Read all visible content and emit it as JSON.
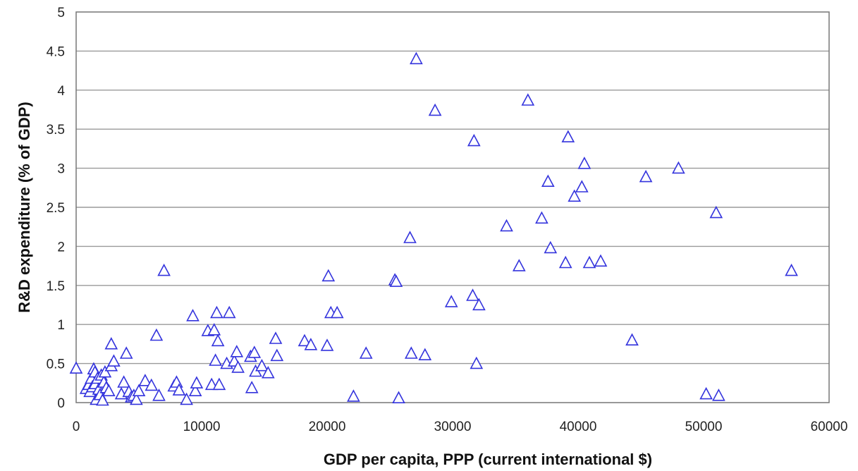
{
  "chart_data": {
    "type": "scatter",
    "title": "",
    "xlabel": "GDP per capita, PPP (current international $)",
    "ylabel": "R&D expenditure (% of GDP)",
    "xlim": [
      0,
      60000
    ],
    "ylim": [
      0,
      5
    ],
    "xticks": [
      0,
      10000,
      20000,
      30000,
      40000,
      50000,
      60000
    ],
    "yticks": [
      0,
      0.5,
      1,
      1.5,
      2,
      2.5,
      3,
      3.5,
      4,
      4.5,
      5
    ],
    "xtick_labels": [
      "0",
      "10000",
      "20000",
      "30000",
      "40000",
      "50000",
      "60000"
    ],
    "ytick_labels": [
      "0",
      "0.5",
      "1",
      "1.5",
      "2",
      "2.5",
      "3",
      "3.5",
      "4",
      "4.5",
      "5"
    ],
    "grid": "horizontal",
    "legend": "none",
    "marker": "open-triangle",
    "marker_color": "#3333dd",
    "points": [
      {
        "x": 0,
        "y": 0.43
      },
      {
        "x": 800,
        "y": 0.17
      },
      {
        "x": 1000,
        "y": 0.22
      },
      {
        "x": 1100,
        "y": 0.13
      },
      {
        "x": 1200,
        "y": 0.3
      },
      {
        "x": 1300,
        "y": 0.19
      },
      {
        "x": 1400,
        "y": 0.42
      },
      {
        "x": 1500,
        "y": 0.38
      },
      {
        "x": 1500,
        "y": 0.23
      },
      {
        "x": 1600,
        "y": 0.03
      },
      {
        "x": 1700,
        "y": 0.3
      },
      {
        "x": 1800,
        "y": 0.16
      },
      {
        "x": 1900,
        "y": 0.09
      },
      {
        "x": 2000,
        "y": 0.34
      },
      {
        "x": 2100,
        "y": 0.02
      },
      {
        "x": 2200,
        "y": 0.25
      },
      {
        "x": 2300,
        "y": 0.38
      },
      {
        "x": 2400,
        "y": 0.18
      },
      {
        "x": 2600,
        "y": 0.14
      },
      {
        "x": 2800,
        "y": 0.46
      },
      {
        "x": 2800,
        "y": 0.74
      },
      {
        "x": 3000,
        "y": 0.52
      },
      {
        "x": 3600,
        "y": 0.1
      },
      {
        "x": 3800,
        "y": 0.25
      },
      {
        "x": 4000,
        "y": 0.62
      },
      {
        "x": 4200,
        "y": 0.13
      },
      {
        "x": 4400,
        "y": 0.06
      },
      {
        "x": 4600,
        "y": 0.08
      },
      {
        "x": 4800,
        "y": 0.03
      },
      {
        "x": 5000,
        "y": 0.14
      },
      {
        "x": 5500,
        "y": 0.27
      },
      {
        "x": 6000,
        "y": 0.21
      },
      {
        "x": 6400,
        "y": 0.85
      },
      {
        "x": 6600,
        "y": 0.08
      },
      {
        "x": 7000,
        "y": 1.68
      },
      {
        "x": 7800,
        "y": 0.2
      },
      {
        "x": 8000,
        "y": 0.25
      },
      {
        "x": 8200,
        "y": 0.15
      },
      {
        "x": 8800,
        "y": 0.03
      },
      {
        "x": 9300,
        "y": 1.1
      },
      {
        "x": 9500,
        "y": 0.14
      },
      {
        "x": 9600,
        "y": 0.24
      },
      {
        "x": 10500,
        "y": 0.91
      },
      {
        "x": 10800,
        "y": 0.22
      },
      {
        "x": 11000,
        "y": 0.92
      },
      {
        "x": 11100,
        "y": 0.53
      },
      {
        "x": 11200,
        "y": 1.14
      },
      {
        "x": 11300,
        "y": 0.78
      },
      {
        "x": 11400,
        "y": 0.22
      },
      {
        "x": 12000,
        "y": 0.49
      },
      {
        "x": 12200,
        "y": 1.14
      },
      {
        "x": 12600,
        "y": 0.52
      },
      {
        "x": 12800,
        "y": 0.64
      },
      {
        "x": 12900,
        "y": 0.44
      },
      {
        "x": 13900,
        "y": 0.58
      },
      {
        "x": 14000,
        "y": 0.18
      },
      {
        "x": 14200,
        "y": 0.63
      },
      {
        "x": 14300,
        "y": 0.39
      },
      {
        "x": 14800,
        "y": 0.46
      },
      {
        "x": 15300,
        "y": 0.37
      },
      {
        "x": 15900,
        "y": 0.81
      },
      {
        "x": 16000,
        "y": 0.59
      },
      {
        "x": 18200,
        "y": 0.78
      },
      {
        "x": 18700,
        "y": 0.73
      },
      {
        "x": 20000,
        "y": 0.72
      },
      {
        "x": 20100,
        "y": 1.61
      },
      {
        "x": 20300,
        "y": 1.14
      },
      {
        "x": 20800,
        "y": 1.14
      },
      {
        "x": 22100,
        "y": 0.07
      },
      {
        "x": 23100,
        "y": 0.62
      },
      {
        "x": 25400,
        "y": 1.56
      },
      {
        "x": 25500,
        "y": 1.54
      },
      {
        "x": 25700,
        "y": 0.05
      },
      {
        "x": 26600,
        "y": 2.1
      },
      {
        "x": 26700,
        "y": 0.62
      },
      {
        "x": 27100,
        "y": 4.39
      },
      {
        "x": 27800,
        "y": 0.6
      },
      {
        "x": 28600,
        "y": 3.73
      },
      {
        "x": 29900,
        "y": 1.28
      },
      {
        "x": 31600,
        "y": 1.36
      },
      {
        "x": 31700,
        "y": 3.34
      },
      {
        "x": 31900,
        "y": 0.49
      },
      {
        "x": 32100,
        "y": 1.24
      },
      {
        "x": 34300,
        "y": 2.25
      },
      {
        "x": 35300,
        "y": 1.74
      },
      {
        "x": 36000,
        "y": 3.86
      },
      {
        "x": 37100,
        "y": 2.35
      },
      {
        "x": 37600,
        "y": 2.82
      },
      {
        "x": 37800,
        "y": 1.97
      },
      {
        "x": 39000,
        "y": 1.78
      },
      {
        "x": 39200,
        "y": 3.39
      },
      {
        "x": 39700,
        "y": 2.63
      },
      {
        "x": 40300,
        "y": 2.75
      },
      {
        "x": 40500,
        "y": 3.05
      },
      {
        "x": 40900,
        "y": 1.78
      },
      {
        "x": 41800,
        "y": 1.8
      },
      {
        "x": 44300,
        "y": 0.79
      },
      {
        "x": 45400,
        "y": 2.88
      },
      {
        "x": 48000,
        "y": 2.99
      },
      {
        "x": 50200,
        "y": 0.1
      },
      {
        "x": 51000,
        "y": 2.42
      },
      {
        "x": 51200,
        "y": 0.08
      },
      {
        "x": 57000,
        "y": 1.68
      }
    ]
  }
}
